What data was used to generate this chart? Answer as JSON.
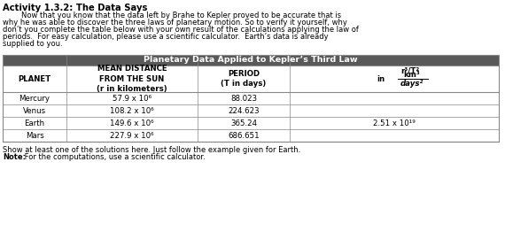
{
  "title": "Activity 1.3.2: The Data Says",
  "para_lines": [
    "        Now that you know that the data left by Brahe to Kepler proved to be accurate that is",
    "why he was able to discover the three laws of planetary motion. So to verify it yourself, why",
    "don’t you complete the table below with your own result of the calculations applying the law of",
    "periods.  For easy calculation, please use a scientific calculator.  Earth’s data is already",
    "supplied to you."
  ],
  "table_title": "Planetary Data Applied to Kepler’s Third Law",
  "planets": [
    "Mercury",
    "Venus",
    "Earth",
    "Mars"
  ],
  "distances": [
    "57.9 x 10⁶",
    "108.2 x 10⁶",
    "149.6 x 10⁶",
    "227.9 x 10⁶"
  ],
  "periods": [
    "88.023",
    "224.623",
    "365.24",
    "686.651"
  ],
  "r3t2": [
    "",
    "",
    "2.51 x 10¹⁹",
    ""
  ],
  "footer1": "Show at least one of the solutions here. Just follow the example given for Earth.",
  "footer2_bold": "Note:",
  "footer2_normal": " For the computations, use a scientific calculator.",
  "header_bg": "#595959",
  "header_fg": "#ffffff",
  "border_color": "#888888",
  "row_bg": "#ffffff"
}
